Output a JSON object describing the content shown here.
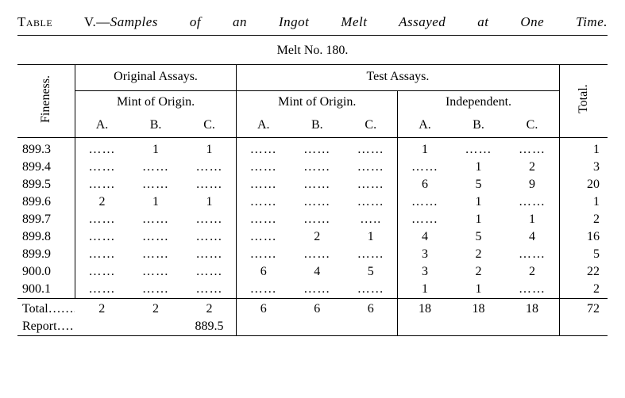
{
  "title": {
    "label": "Table V.",
    "desc": "Samples of an Ingot Melt Assayed at One Time."
  },
  "melt_no": "Melt No. 180.",
  "headers": {
    "fineness": "Fineness.",
    "original": "Original Assays.",
    "test": "Test Assays.",
    "mint": "Mint of Origin.",
    "independent": "Independent.",
    "total": "Total.",
    "a": "A.",
    "b": "B.",
    "c": "C."
  },
  "dots": "……",
  "rows": [
    {
      "fine": "899.3",
      "oa": "……",
      "ob": "1",
      "oc": "1",
      "ta": "……",
      "tb": "……",
      "tc": "……",
      "ia": "1",
      "ib": "……",
      "ic": "……",
      "tot": "1"
    },
    {
      "fine": "899.4",
      "oa": "……",
      "ob": "……",
      "oc": "……",
      "ta": "……",
      "tb": "……",
      "tc": "……",
      "ia": "……",
      "ib": "1",
      "ic": "2",
      "tot": "3"
    },
    {
      "fine": "899.5",
      "oa": "……",
      "ob": "……",
      "oc": "……",
      "ta": "……",
      "tb": "……",
      "tc": "……",
      "ia": "6",
      "ib": "5",
      "ic": "9",
      "tot": "20"
    },
    {
      "fine": "899.6",
      "oa": "2",
      "ob": "1",
      "oc": "1",
      "ta": "……",
      "tb": "……",
      "tc": "……",
      "ia": "……",
      "ib": "1",
      "ic": "……",
      "tot": "1"
    },
    {
      "fine": "899.7",
      "oa": "……",
      "ob": "……",
      "oc": "……",
      "ta": "……",
      "tb": "……",
      "tc": "…..",
      "ia": "……",
      "ib": "1",
      "ic": "1",
      "tot": "2"
    },
    {
      "fine": "899.8",
      "oa": "……",
      "ob": "……",
      "oc": "……",
      "ta": "……",
      "tb": "2",
      "tc": "1",
      "ia": "4",
      "ib": "5",
      "ic": "4",
      "tot": "16"
    },
    {
      "fine": "899.9",
      "oa": "……",
      "ob": "……",
      "oc": "……",
      "ta": "……",
      "tb": "……",
      "tc": "……",
      "ia": "3",
      "ib": "2",
      "ic": "……",
      "tot": "5"
    },
    {
      "fine": "900.0",
      "oa": "……",
      "ob": "……",
      "oc": "……",
      "ta": "6",
      "tb": "4",
      "tc": "5",
      "ia": "3",
      "ib": "2",
      "ic": "2",
      "tot": "22"
    },
    {
      "fine": "900.1",
      "oa": "……",
      "ob": "……",
      "oc": "……",
      "ta": "……",
      "tb": "……",
      "tc": "……",
      "ia": "1",
      "ib": "1",
      "ic": "……",
      "tot": "2"
    }
  ],
  "totals": {
    "label": "Total……..",
    "oa": "2",
    "ob": "2",
    "oc": "2",
    "ta": "6",
    "tb": "6",
    "tc": "6",
    "ia": "18",
    "ib": "18",
    "ic": "18",
    "tot": "72"
  },
  "report": {
    "label": "Report……",
    "value": "889.5"
  }
}
